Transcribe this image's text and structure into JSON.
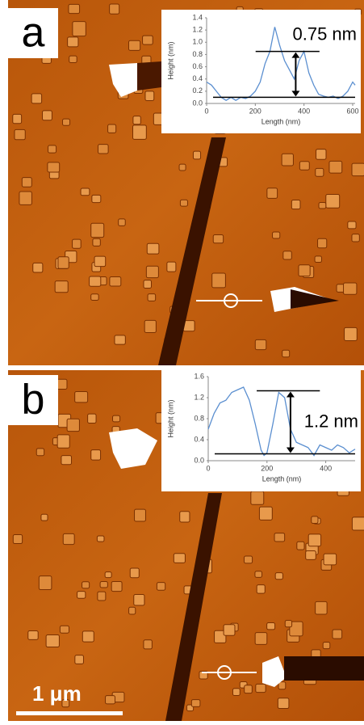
{
  "panels": [
    {
      "label": "a"
    },
    {
      "label": "b"
    }
  ],
  "scale_bar": "1 μm",
  "chart_data": [
    {
      "type": "line",
      "x_label": "Length (nm)",
      "y_label": "Height (nm)",
      "xlim": [
        0,
        610
      ],
      "xticks": [
        0,
        200,
        400,
        600
      ],
      "ylim": [
        0,
        1.4
      ],
      "yticks": [
        {
          "value": 0,
          "label": "0.0"
        },
        0.2,
        0.4,
        0.6,
        0.8,
        {
          "value": 1,
          "label": "1.0"
        },
        1.2,
        1.4
      ],
      "x": [
        0,
        20,
        40,
        60,
        80,
        100,
        120,
        140,
        160,
        180,
        200,
        220,
        240,
        260,
        280,
        300,
        320,
        340,
        360,
        380,
        400,
        420,
        440,
        460,
        480,
        500,
        520,
        540,
        560,
        580,
        600,
        610
      ],
      "series": [
        {
          "color": "#5b8fd0",
          "values": [
            0.35,
            0.3,
            0.2,
            0.1,
            0.05,
            0.1,
            0.05,
            0.1,
            0.08,
            0.12,
            0.2,
            0.35,
            0.65,
            0.85,
            1.25,
            0.95,
            0.7,
            0.55,
            0.4,
            0.7,
            0.85,
            0.5,
            0.3,
            0.15,
            0.12,
            0.1,
            0.12,
            0.08,
            0.12,
            0.2,
            0.35,
            0.3
          ]
        }
      ],
      "hlines": [
        0.85,
        0.1
      ],
      "annotation": "0.75 nm"
    },
    {
      "type": "line",
      "x_label": "Length (nm)",
      "y_label": "Height (nm)",
      "xlim": [
        0,
        500
      ],
      "xticks": [
        0,
        200,
        400
      ],
      "ylim": [
        0,
        1.6
      ],
      "yticks": [
        {
          "value": 0,
          "label": "0.0"
        },
        0.4,
        0.8,
        1.2,
        1.6
      ],
      "x": [
        0,
        20,
        40,
        60,
        80,
        100,
        120,
        140,
        160,
        180,
        190,
        200,
        220,
        240,
        260,
        280,
        300,
        320,
        340,
        360,
        380,
        400,
        420,
        440,
        460,
        480,
        500
      ],
      "series": [
        {
          "color": "#5b8fd0",
          "values": [
            0.6,
            0.9,
            1.1,
            1.15,
            1.3,
            1.35,
            1.4,
            1.15,
            0.7,
            0.2,
            0.1,
            0.15,
            0.7,
            1.3,
            1.2,
            0.6,
            0.35,
            0.3,
            0.25,
            0.1,
            0.3,
            0.25,
            0.2,
            0.3,
            0.25,
            0.15,
            0.22
          ]
        }
      ],
      "hlines": [
        1.33,
        0.13
      ],
      "annotation": "1.2 nm"
    }
  ]
}
